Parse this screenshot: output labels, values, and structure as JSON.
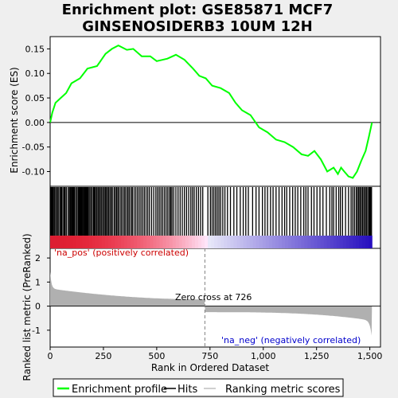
{
  "chart_data": {
    "type": "line",
    "title_line1": "Enrichment plot: GSE85871 MCF7",
    "title_line2": "GINSENOSIDERB3 10UM 12H",
    "xlabel": "Rank in Ordered Dataset",
    "ylabel_top": "Enrichment score (ES)",
    "ylabel_bottom": "Ranked list metric (PreRanked)",
    "xlim": [
      0,
      1550
    ],
    "x_ticks": [
      "0",
      "250",
      "500",
      "750",
      "1,000",
      "1,250",
      "1,500"
    ],
    "x_tick_values": [
      0,
      250,
      500,
      750,
      1000,
      1250,
      1500
    ],
    "es_ylim": [
      -0.13,
      0.175
    ],
    "es_ticks": [
      "0.15",
      "0.10",
      "0.05",
      "0.00",
      "-0.05",
      "-0.10"
    ],
    "es_tick_values": [
      0.15,
      0.1,
      0.05,
      0.0,
      -0.05,
      -0.1
    ],
    "metric_ylim": [
      -1.7,
      2.4
    ],
    "metric_ticks": [
      "2",
      "1",
      "0",
      "-1"
    ],
    "metric_tick_values": [
      2,
      1,
      0,
      -1
    ],
    "n_genes": 1510,
    "zero_cross": 726,
    "zero_cross_label": "Zero cross at 726",
    "pos_label": "'na_pos' (positively correlated)",
    "neg_label": "'na_neg' (negatively correlated)",
    "enrichment_profile": [
      [
        0,
        0.0
      ],
      [
        10,
        0.02
      ],
      [
        25,
        0.04
      ],
      [
        50,
        0.05
      ],
      [
        75,
        0.06
      ],
      [
        100,
        0.08
      ],
      [
        140,
        0.09
      ],
      [
        175,
        0.11
      ],
      [
        220,
        0.115
      ],
      [
        260,
        0.14
      ],
      [
        290,
        0.15
      ],
      [
        320,
        0.157
      ],
      [
        360,
        0.148
      ],
      [
        390,
        0.15
      ],
      [
        430,
        0.135
      ],
      [
        470,
        0.135
      ],
      [
        500,
        0.125
      ],
      [
        550,
        0.13
      ],
      [
        590,
        0.138
      ],
      [
        630,
        0.128
      ],
      [
        670,
        0.11
      ],
      [
        700,
        0.095
      ],
      [
        730,
        0.09
      ],
      [
        760,
        0.075
      ],
      [
        800,
        0.07
      ],
      [
        840,
        0.06
      ],
      [
        870,
        0.04
      ],
      [
        900,
        0.025
      ],
      [
        940,
        0.015
      ],
      [
        980,
        -0.01
      ],
      [
        1020,
        -0.02
      ],
      [
        1060,
        -0.035
      ],
      [
        1100,
        -0.04
      ],
      [
        1140,
        -0.05
      ],
      [
        1180,
        -0.065
      ],
      [
        1210,
        -0.068
      ],
      [
        1240,
        -0.058
      ],
      [
        1270,
        -0.075
      ],
      [
        1300,
        -0.1
      ],
      [
        1330,
        -0.092
      ],
      [
        1350,
        -0.105
      ],
      [
        1365,
        -0.092
      ],
      [
        1380,
        -0.1
      ],
      [
        1400,
        -0.11
      ],
      [
        1420,
        -0.113
      ],
      [
        1440,
        -0.1
      ],
      [
        1460,
        -0.078
      ],
      [
        1480,
        -0.058
      ],
      [
        1495,
        -0.03
      ],
      [
        1505,
        -0.01
      ],
      [
        1510,
        0.0
      ]
    ],
    "hits": [
      2,
      6,
      10,
      13,
      18,
      22,
      28,
      34,
      38,
      45,
      50,
      54,
      60,
      66,
      70,
      76,
      84,
      90,
      94,
      98,
      102,
      106,
      110,
      114,
      120,
      126,
      132,
      136,
      140,
      144,
      148,
      152,
      156,
      160,
      164,
      168,
      172,
      176,
      180,
      186,
      192,
      198,
      204,
      208,
      212,
      218,
      224,
      228,
      234,
      240,
      246,
      252,
      258,
      262,
      268,
      274,
      280,
      286,
      292,
      300,
      306,
      312,
      318,
      324,
      332,
      338,
      346,
      352,
      360,
      366,
      372,
      380,
      386,
      394,
      402,
      410,
      418,
      426,
      434,
      442,
      450,
      458,
      466,
      476,
      486,
      496,
      504,
      512,
      520,
      528,
      536,
      544,
      552,
      560,
      566,
      572,
      580,
      590,
      600,
      610,
      620,
      630,
      640,
      650,
      660,
      668,
      676,
      686,
      696,
      706,
      716,
      740,
      752,
      760,
      768,
      776,
      784,
      792,
      800,
      810,
      820,
      832,
      846,
      862,
      876,
      892,
      906,
      918,
      930,
      950,
      966,
      980,
      996,
      1008,
      1020,
      1034,
      1046,
      1060,
      1074,
      1088,
      1100,
      1110,
      1124,
      1138,
      1150,
      1162,
      1176,
      1190,
      1200,
      1210,
      1226,
      1238,
      1252,
      1266,
      1280,
      1296,
      1312,
      1322,
      1330,
      1342,
      1354,
      1362,
      1372,
      1386,
      1400,
      1412,
      1420,
      1428,
      1436,
      1442,
      1448,
      1454,
      1460,
      1466,
      1472,
      1478,
      1484,
      1490,
      1496,
      1500,
      1504,
      1508
    ],
    "legend": [
      {
        "label": "Enrichment profile",
        "color": "#00ff00"
      },
      {
        "label": "Hits",
        "color": "#000000"
      },
      {
        "label": "Ranking metric scores",
        "color": "#c0c0c0"
      }
    ],
    "colors": {
      "profile": "#00ff00",
      "metric_fill": "#b0b0b0",
      "pos_text": "#cc0000",
      "neg_text": "#0000cc",
      "zero_line": "#808080"
    }
  }
}
